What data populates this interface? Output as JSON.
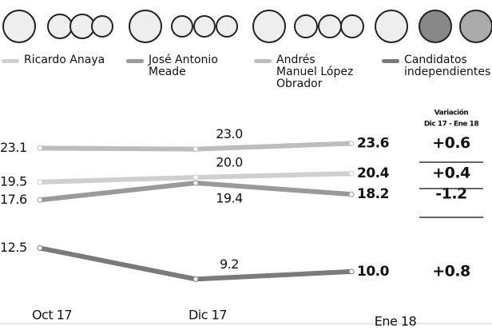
{
  "chart_data": {
    "type": "line",
    "categories": [
      "Oct 17",
      "Dic 17",
      "Ene 18"
    ],
    "series": [
      {
        "name": "Ricardo Anaya",
        "color": "#cfcfcf",
        "values": [
          19.5,
          20.0,
          20.4
        ],
        "value_labels": [
          "19.5",
          "20.0",
          "20.4"
        ],
        "variation": "+0.4"
      },
      {
        "name": "José Antonio Meade",
        "color": "#9a9a9a",
        "values": [
          17.6,
          19.4,
          18.2
        ],
        "value_labels": [
          "17.6",
          "19.4",
          "18.2"
        ],
        "variation": "-1.2"
      },
      {
        "name": "Andrés Manuel López Obrador",
        "color": "#bdbdbd",
        "values": [
          23.1,
          23.0,
          23.6
        ],
        "value_labels": [
          "23.1",
          "23.0",
          "23.6"
        ],
        "variation": "+0.6"
      },
      {
        "name": "Candidatos independientes",
        "color": "#7a7a7a",
        "values": [
          12.5,
          9.2,
          10.0
        ],
        "value_labels": [
          "12.5",
          "9.2",
          "10.0"
        ],
        "variation": "+0.8"
      }
    ],
    "variation_title": "Variación",
    "variation_period": "Dic 17 - Ene 18",
    "ylim": [
      6.6,
      26.1
    ]
  }
}
